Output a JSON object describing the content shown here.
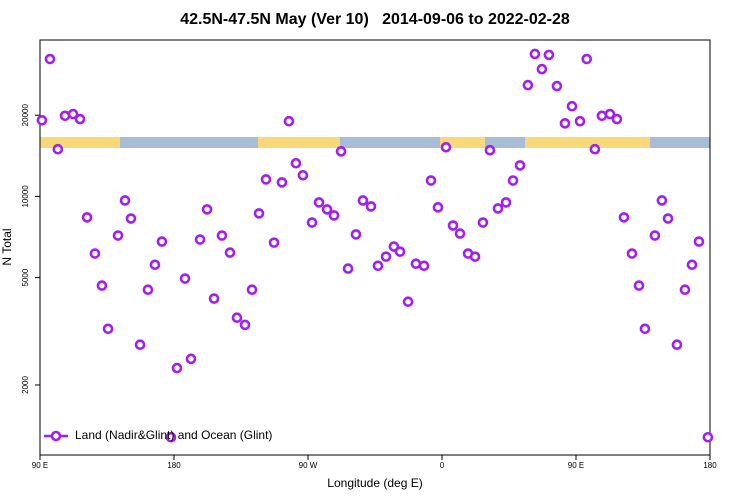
{
  "chart_data": {
    "type": "scatter",
    "title": "42.5N-47.5N May (Ver 10)   2014-09-06 to 2022-02-28",
    "xlabel": "Longitude (deg E)",
    "ylabel": "N Total",
    "yscale": "log",
    "legend": "lower left",
    "xlim": [
      90,
      540
    ],
    "ylim": [
      1100,
      38000
    ],
    "xticks": [
      {
        "value": 90,
        "label": "90 E"
      },
      180,
      {
        "value": 270,
        "label": "90 W"
      },
      {
        "value": 360,
        "label": "0"
      },
      {
        "value": 450,
        "label": "90 E"
      },
      {
        "value": 540,
        "label": "180"
      }
    ],
    "yticks": [
      2000,
      5000,
      10000,
      20000
    ],
    "series": [
      {
        "name": "Land (Nadir&Glint) and Ocean (Glint)",
        "color": "#a020f0",
        "x": [
          91.3,
          96.7,
          102,
          106.8,
          112.2,
          116.9,
          121.6,
          126.9,
          131.6,
          135.7,
          142.4,
          147.1,
          151.1,
          157.2,
          162.5,
          167.2,
          171.9,
          178,
          182,
          187.4,
          191.4,
          197.5,
          202.2,
          206.9,
          212.2,
          217.6,
          222.3,
          227.7,
          232.4,
          237.1,
          241.8,
          247.2,
          252.5,
          257.2,
          261.9,
          266.6,
          272.7,
          277.4,
          282.8,
          287.5,
          292.2,
          296.9,
          302.2,
          306.9,
          312.3,
          317,
          322.4,
          327.7,
          331.8,
          337.2,
          342.5,
          347.9,
          352.6,
          357.3,
          362.7,
          367.4,
          372.1,
          377.5,
          382.2,
          387.5,
          392.2,
          397.6,
          403,
          407.7,
          412.4,
          417.7,
          422.4,
          427.1,
          431.8,
          437.2,
          442.6,
          447.3,
          452.7,
          457.2,
          462.7,
          467.4,
          472.8,
          477.5,
          482.2,
          487.6,
          492.3,
          496.3,
          503,
          507.7,
          511.8,
          517.8,
          523.2,
          527.9,
          532.6,
          538.6
        ],
        "values": [
          19150,
          32300,
          14960,
          19900,
          20200,
          19350,
          8360,
          6140,
          4670,
          3230,
          7160,
          9660,
          8280,
          2820,
          4510,
          5580,
          6800,
          1280,
          2310,
          4960,
          2500,
          6920,
          8950,
          4180,
          7160,
          6190,
          3550,
          3340,
          4510,
          8650,
          11560,
          6740,
          11270,
          19000,
          13270,
          11980,
          8000,
          9500,
          8950,
          8500,
          14690,
          5400,
          7230,
          9660,
          9180,
          5530,
          5980,
          6520,
          6240,
          4070,
          5630,
          5530,
          11450,
          9110,
          15210,
          7800,
          7280,
          6140,
          5980,
          8000,
          14830,
          9020,
          9500,
          11450,
          13030,
          25860,
          33730,
          29650,
          33470,
          25640,
          18660,
          21590,
          19000,
          32300,
          14960,
          19900,
          20200,
          19350,
          8360,
          6140,
          4670,
          3230,
          7160,
          9660,
          8280,
          2820,
          4510,
          5580,
          6800,
          1280
        ]
      }
    ]
  }
}
